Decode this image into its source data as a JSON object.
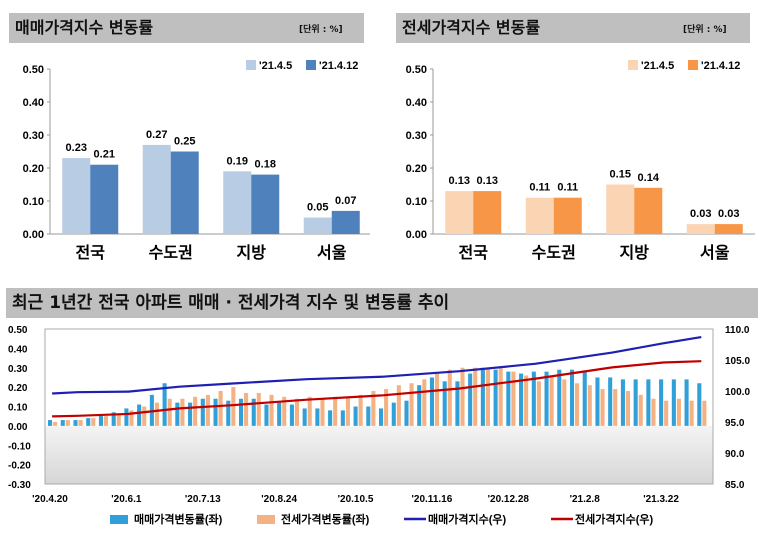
{
  "panels": {
    "sale": {
      "title": "매매가격지수 변동률",
      "unit": "[단위 : %]"
    },
    "jeonse": {
      "title": "전세가격지수 변동률",
      "unit": "[단위 : %]"
    },
    "trend": {
      "title": "최근 1년간 전국 아파트 매매 · 전세가격 지수 및 변동률 추이"
    }
  },
  "chart_data": [
    {
      "type": "bar",
      "title": "매매가격지수 변동률",
      "unit": "[단위 : %]",
      "categories": [
        "전국",
        "수도권",
        "지방",
        "서울"
      ],
      "series": [
        {
          "name": "'21.4.5",
          "values": [
            0.23,
            0.27,
            0.19,
            0.05
          ],
          "color": "#b8cce4"
        },
        {
          "name": "'21.4.12",
          "values": [
            0.21,
            0.25,
            0.18,
            0.07
          ],
          "color": "#4f81bd"
        }
      ],
      "ylim": [
        0,
        0.5
      ],
      "yticks": [
        "0.00",
        "0.10",
        "0.20",
        "0.30",
        "0.40",
        "0.50"
      ],
      "legend": "top-right",
      "grid": false
    },
    {
      "type": "bar",
      "title": "전세가격지수 변동률",
      "unit": "[단위 : %]",
      "categories": [
        "전국",
        "수도권",
        "지방",
        "서울"
      ],
      "series": [
        {
          "name": "'21.4.5",
          "values": [
            0.13,
            0.11,
            0.15,
            0.03
          ],
          "color": "#fbd4b4"
        },
        {
          "name": "'21.4.12",
          "values": [
            0.13,
            0.11,
            0.14,
            0.03
          ],
          "color": "#f79646"
        }
      ],
      "ylim": [
        0,
        0.5
      ],
      "yticks": [
        "0.00",
        "0.10",
        "0.20",
        "0.30",
        "0.40",
        "0.50"
      ],
      "legend": "top-right",
      "grid": false
    },
    {
      "type": "bar+line",
      "title": "최근 1년간 전국 아파트 매매 · 전세가격 지수 및 변동률 추이",
      "x_ticks": [
        "'20.4.20",
        "'20.6.1",
        "'20.7.13",
        "'20.8.24",
        "'20.10.5",
        "'20.11.16",
        "'20.12.28",
        "'21.2.8",
        "'21.3.22"
      ],
      "y_left": {
        "ylim": [
          -0.3,
          0.5
        ],
        "ticks": [
          "0.50",
          "0.40",
          "0.30",
          "0.20",
          "0.10",
          "0.00",
          "-0.10",
          "-0.20",
          "-0.30"
        ]
      },
      "y_right": {
        "ylim": [
          85.0,
          110.0
        ],
        "ticks": [
          "110.0",
          "105.0",
          "100.0",
          "95.0",
          "90.0",
          "85.0"
        ]
      },
      "series": [
        {
          "name": "매매가격변동률(좌)",
          "type": "bar",
          "axis": "left",
          "color": "#31a0d8",
          "values": [
            0.03,
            0.03,
            0.03,
            0.04,
            0.06,
            0.07,
            0.09,
            0.11,
            0.16,
            0.22,
            0.12,
            0.12,
            0.14,
            0.14,
            0.13,
            0.14,
            0.14,
            0.11,
            0.12,
            0.11,
            0.09,
            0.09,
            0.08,
            0.08,
            0.1,
            0.1,
            0.09,
            0.12,
            0.13,
            0.21,
            0.25,
            0.23,
            0.23,
            0.27,
            0.3,
            0.29,
            0.28,
            0.27,
            0.28,
            0.28,
            0.29,
            0.29,
            0.28,
            0.25,
            0.25,
            0.24,
            0.24,
            0.24,
            0.24,
            0.24,
            0.24,
            0.22
          ]
        },
        {
          "name": "전세가격변동률(좌)",
          "type": "bar",
          "axis": "left",
          "color": "#f4b183",
          "values": [
            0.02,
            0.03,
            0.03,
            0.04,
            0.05,
            0.06,
            0.08,
            0.1,
            0.12,
            0.14,
            0.14,
            0.15,
            0.16,
            0.18,
            0.2,
            0.17,
            0.17,
            0.16,
            0.15,
            0.14,
            0.15,
            0.14,
            0.15,
            0.15,
            0.16,
            0.18,
            0.19,
            0.21,
            0.22,
            0.24,
            0.27,
            0.29,
            0.3,
            0.3,
            0.3,
            0.3,
            0.28,
            0.26,
            0.23,
            0.25,
            0.24,
            0.22,
            0.21,
            0.19,
            0.19,
            0.18,
            0.16,
            0.14,
            0.13,
            0.14,
            0.13,
            0.13
          ]
        },
        {
          "name": "매매가격지수(우)",
          "type": "line",
          "axis": "right",
          "color": "#1f1fb4",
          "values": [
            [
              0,
              99.6
            ],
            [
              2,
              99.8
            ],
            [
              6,
              99.9
            ],
            [
              10,
              100.7
            ],
            [
              14,
              101.2
            ],
            [
              20,
              101.9
            ],
            [
              26,
              102.3
            ],
            [
              32,
              103.2
            ],
            [
              38,
              104.4
            ],
            [
              44,
              106.2
            ],
            [
              48,
              107.7
            ],
            [
              51,
              108.7
            ]
          ]
        },
        {
          "name": "전세가격지수(우)",
          "type": "line",
          "axis": "right",
          "color": "#c00000",
          "values": [
            [
              0,
              95.9
            ],
            [
              2,
              96.0
            ],
            [
              6,
              96.3
            ],
            [
              10,
              97.2
            ],
            [
              14,
              97.7
            ],
            [
              20,
              98.6
            ],
            [
              26,
              99.3
            ],
            [
              32,
              100.4
            ],
            [
              38,
              102.0
            ],
            [
              44,
              103.8
            ],
            [
              48,
              104.6
            ],
            [
              51,
              104.8
            ]
          ]
        }
      ],
      "legend": "bottom"
    }
  ]
}
